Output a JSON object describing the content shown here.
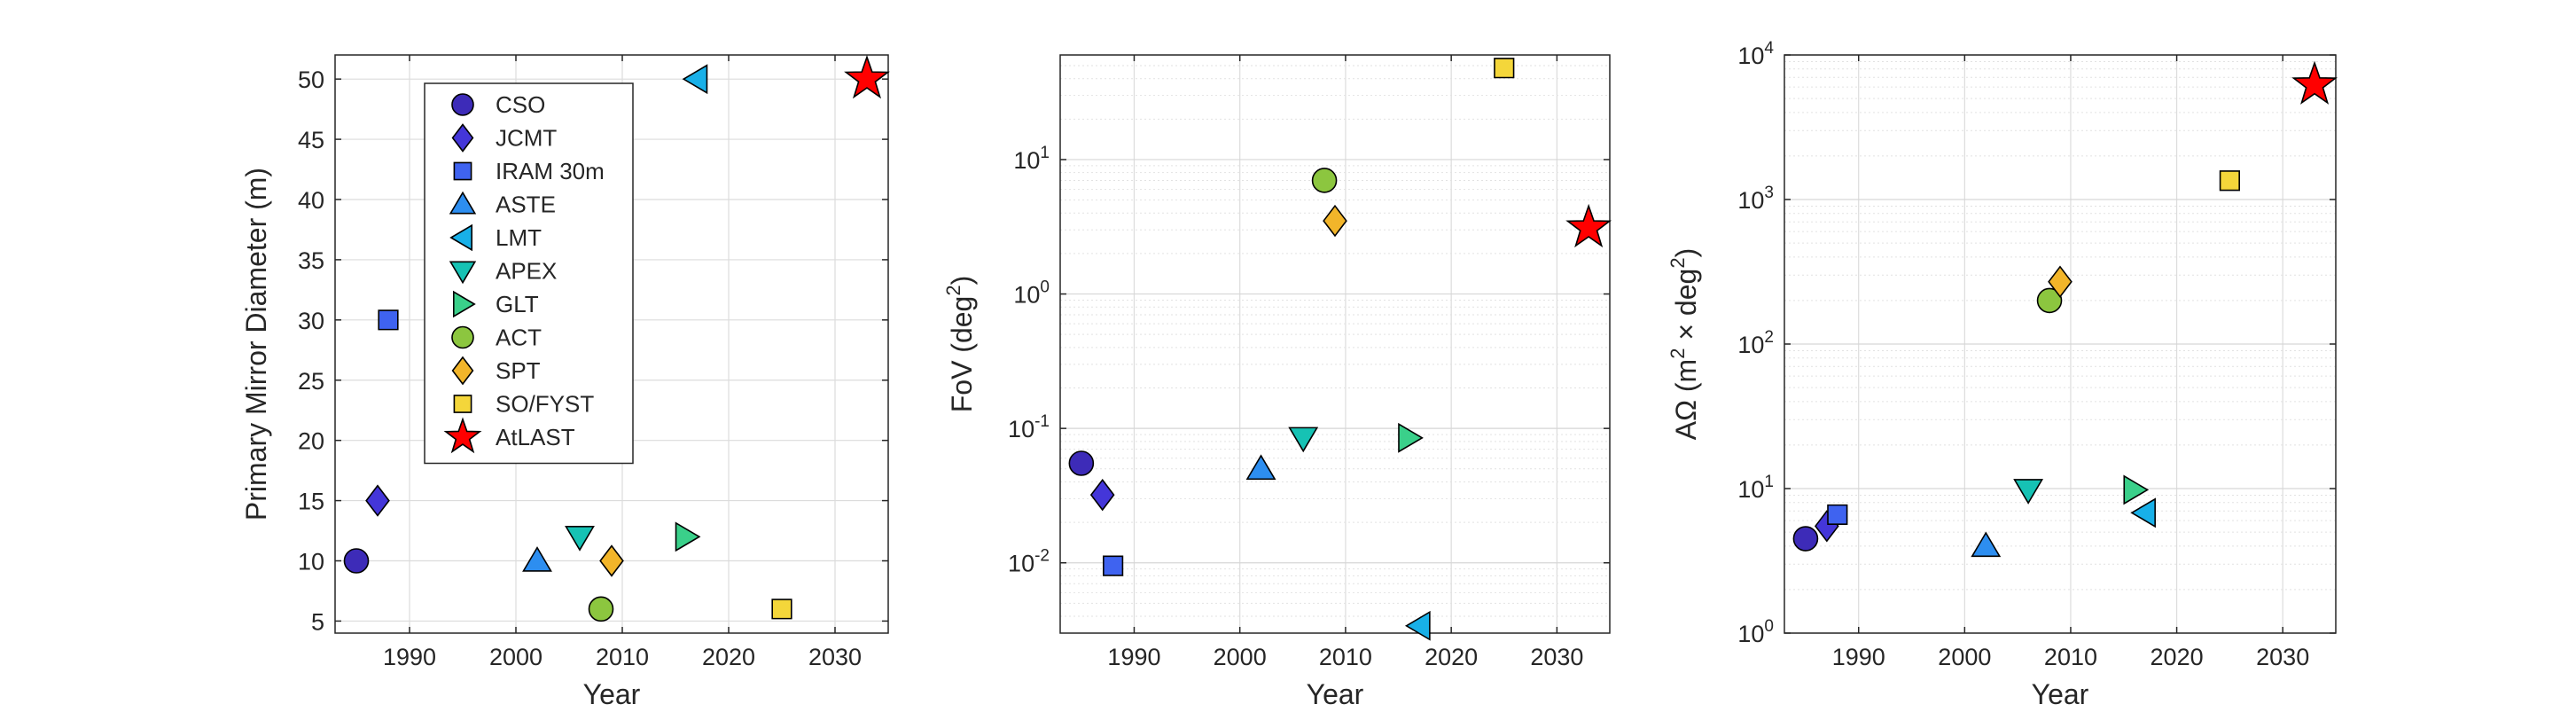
{
  "chart_data": [
    {
      "type": "scatter",
      "xlabel": "Year",
      "ylabel": "Primary Mirror Diameter (m)",
      "xlim": [
        1983,
        2035
      ],
      "ylim": [
        4,
        52
      ],
      "yscale": "linear",
      "xticks": [
        1990,
        2000,
        2010,
        2020,
        2030
      ],
      "yticks": [
        5,
        10,
        15,
        20,
        25,
        30,
        35,
        40,
        45,
        50
      ],
      "grid": true,
      "legend": "top-left",
      "points": [
        {
          "name": "CSO",
          "x": 1985,
          "y": 10
        },
        {
          "name": "JCMT",
          "x": 1987,
          "y": 15
        },
        {
          "name": "IRAM 30m",
          "x": 1988,
          "y": 30
        },
        {
          "name": "ASTE",
          "x": 2002,
          "y": 10
        },
        {
          "name": "LMT",
          "x": 2017,
          "y": 50
        },
        {
          "name": "APEX",
          "x": 2006,
          "y": 12
        },
        {
          "name": "GLT",
          "x": 2016,
          "y": 12
        },
        {
          "name": "ACT",
          "x": 2008,
          "y": 6
        },
        {
          "name": "SPT",
          "x": 2009,
          "y": 10
        },
        {
          "name": "SO/FYST",
          "x": 2025,
          "y": 6
        },
        {
          "name": "AtLAST",
          "x": 2033,
          "y": 50
        }
      ]
    },
    {
      "type": "scatter",
      "xlabel": "Year",
      "ylabel": "FoV (deg<sup>2</sup>)",
      "xlim": [
        1983,
        2035
      ],
      "ylim": [
        0.003,
        60
      ],
      "yscale": "log",
      "xticks": [
        1990,
        2000,
        2010,
        2020,
        2030
      ],
      "yticks": [
        0.01,
        0.1,
        1,
        10
      ],
      "ytick_exp": [
        "-2",
        "-1",
        "0",
        "1"
      ],
      "grid": true,
      "points": [
        {
          "name": "CSO",
          "x": 1985,
          "y": 0.055
        },
        {
          "name": "JCMT",
          "x": 1987,
          "y": 0.032
        },
        {
          "name": "IRAM 30m",
          "x": 1988,
          "y": 0.0095
        },
        {
          "name": "ASTE",
          "x": 2002,
          "y": 0.05
        },
        {
          "name": "LMT",
          "x": 2017,
          "y": 0.0034
        },
        {
          "name": "APEX",
          "x": 2006,
          "y": 0.085
        },
        {
          "name": "GLT",
          "x": 2016,
          "y": 0.085
        },
        {
          "name": "ACT",
          "x": 2008,
          "y": 7
        },
        {
          "name": "SPT",
          "x": 2009,
          "y": 3.5
        },
        {
          "name": "SO/FYST",
          "x": 2025,
          "y": 48
        },
        {
          "name": "AtLAST",
          "x": 2033,
          "y": 3.1
        }
      ]
    },
    {
      "type": "scatter",
      "xlabel": "Year",
      "ylabel": "AΩ (m<sup>2</sup> × deg<sup>2</sup>)",
      "xlim": [
        1983,
        2035
      ],
      "ylim": [
        1,
        10000
      ],
      "yscale": "log",
      "xticks": [
        1990,
        2000,
        2010,
        2020,
        2030
      ],
      "yticks": [
        1,
        10,
        100,
        1000,
        10000
      ],
      "ytick_exp": [
        "0",
        "1",
        "2",
        "3",
        "4"
      ],
      "grid": true,
      "points": [
        {
          "name": "CSO",
          "x": 1985,
          "y": 4.5
        },
        {
          "name": "JCMT",
          "x": 1987,
          "y": 5.5
        },
        {
          "name": "IRAM 30m",
          "x": 1988,
          "y": 6.6
        },
        {
          "name": "ASTE",
          "x": 2002,
          "y": 4
        },
        {
          "name": "LMT",
          "x": 2017,
          "y": 6.8
        },
        {
          "name": "APEX",
          "x": 2006,
          "y": 9.8
        },
        {
          "name": "GLT",
          "x": 2016,
          "y": 9.8
        },
        {
          "name": "ACT",
          "x": 2008,
          "y": 200
        },
        {
          "name": "SPT",
          "x": 2009,
          "y": 270
        },
        {
          "name": "SO/FYST",
          "x": 2025,
          "y": 1350
        },
        {
          "name": "AtLAST",
          "x": 2033,
          "y": 6200
        }
      ]
    }
  ],
  "legend_entries": [
    {
      "name": "CSO",
      "marker": "circle",
      "color": "#3d2bb8"
    },
    {
      "name": "JCMT",
      "marker": "diamond",
      "color": "#4436d9"
    },
    {
      "name": "IRAM 30m",
      "marker": "square",
      "color": "#3f63f0"
    },
    {
      "name": "ASTE",
      "marker": "triangle-up",
      "color": "#2d8ef0"
    },
    {
      "name": "LMT",
      "marker": "triangle-left",
      "color": "#18b0e8"
    },
    {
      "name": "APEX",
      "marker": "triangle-down",
      "color": "#16c2b4"
    },
    {
      "name": "GLT",
      "marker": "triangle-right",
      "color": "#3ad08a"
    },
    {
      "name": "ACT",
      "marker": "circle",
      "color": "#8cc63f"
    },
    {
      "name": "SPT",
      "marker": "diamond",
      "color": "#f2b52a"
    },
    {
      "name": "SO/FYST",
      "marker": "square",
      "color": "#f4d63a"
    },
    {
      "name": "AtLAST",
      "marker": "star",
      "color": "#ff0000"
    }
  ]
}
